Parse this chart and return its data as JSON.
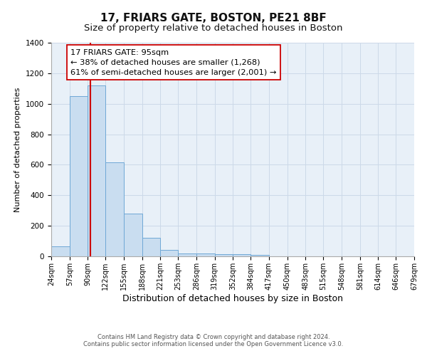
{
  "title": "17, FRIARS GATE, BOSTON, PE21 8BF",
  "subtitle": "Size of property relative to detached houses in Boston",
  "xlabel": "Distribution of detached houses by size in Boston",
  "ylabel": "Number of detached properties",
  "footnote1": "Contains HM Land Registry data © Crown copyright and database right 2024.",
  "footnote2": "Contains public sector information licensed under the Open Government Licence v3.0.",
  "bin_edges": [
    24,
    57,
    90,
    122,
    155,
    188,
    221,
    253,
    286,
    319,
    352,
    384,
    417,
    450,
    483,
    515,
    548,
    581,
    614,
    646,
    679
  ],
  "bar_heights": [
    65,
    1050,
    1120,
    615,
    280,
    120,
    40,
    20,
    20,
    15,
    15,
    10,
    0,
    0,
    0,
    0,
    0,
    0,
    0,
    0
  ],
  "bar_color": "#c9ddf0",
  "bar_edge_color": "#6fa8d6",
  "vline_x": 95,
  "vline_color": "#cc0000",
  "ylim": [
    0,
    1400
  ],
  "annotation_line1": "17 FRIARS GATE: 95sqm",
  "annotation_line2": "← 38% of detached houses are smaller (1,268)",
  "annotation_line3": "61% of semi-detached houses are larger (2,001) →",
  "annotation_box_color": "#ffffff",
  "annotation_box_edge": "#cc0000",
  "title_fontsize": 11,
  "subtitle_fontsize": 9.5,
  "xlabel_fontsize": 9,
  "ylabel_fontsize": 8,
  "tick_label_fontsize": 7,
  "footnote_fontsize": 6,
  "grid_color": "#ccd9e8",
  "bg_color": "#e8f0f8"
}
